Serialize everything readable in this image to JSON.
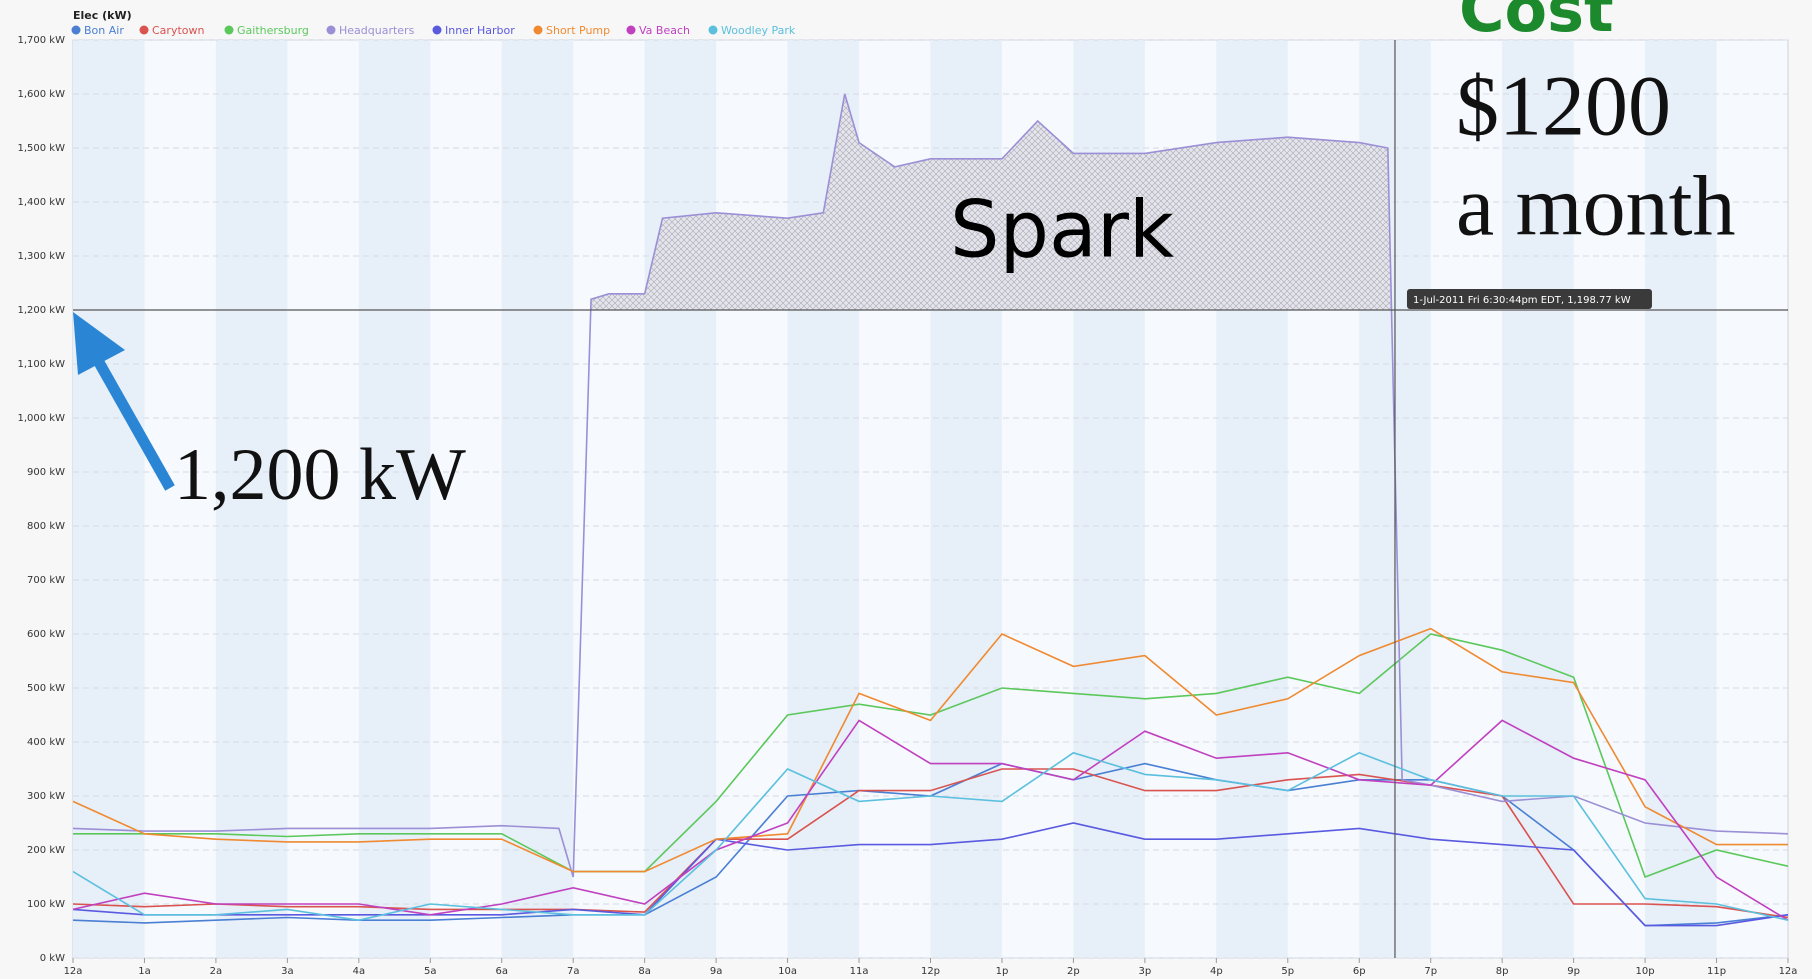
{
  "chart_data": {
    "type": "line",
    "title": "Elec (kW)",
    "x": [
      0,
      1,
      2,
      3,
      4,
      5,
      6,
      7,
      8,
      9,
      10,
      11,
      12,
      13,
      14,
      15,
      16,
      17,
      18,
      19,
      20,
      21,
      22,
      23,
      24
    ],
    "xlim": [
      0,
      24
    ],
    "xticks": [
      {
        "value": 0,
        "label": "12a"
      },
      {
        "value": 1,
        "label": "1a"
      },
      {
        "value": 2,
        "label": "2a"
      },
      {
        "value": 3,
        "label": "3a"
      },
      {
        "value": 4,
        "label": "4a"
      },
      {
        "value": 5,
        "label": "5a"
      },
      {
        "value": 6,
        "label": "6a"
      },
      {
        "value": 7,
        "label": "7a"
      },
      {
        "value": 8,
        "label": "8a"
      },
      {
        "value": 9,
        "label": "9a"
      },
      {
        "value": 10,
        "label": "10a"
      },
      {
        "value": 11,
        "label": "11a"
      },
      {
        "value": 12,
        "label": "12p"
      },
      {
        "value": 13,
        "label": "1p"
      },
      {
        "value": 14,
        "label": "2p"
      },
      {
        "value": 15,
        "label": "3p"
      },
      {
        "value": 16,
        "label": "4p"
      },
      {
        "value": 17,
        "label": "5p"
      },
      {
        "value": 18,
        "label": "6p"
      },
      {
        "value": 19,
        "label": "7p"
      },
      {
        "value": 20,
        "label": "8p"
      },
      {
        "value": 21,
        "label": "9p"
      },
      {
        "value": 22,
        "label": "10p"
      },
      {
        "value": 23,
        "label": "11p"
      },
      {
        "value": 24,
        "label": "12a"
      }
    ],
    "ylim": [
      0,
      1700
    ],
    "yticks": [
      {
        "value": 0,
        "label": "0 kW"
      },
      {
        "value": 100,
        "label": "100 kW"
      },
      {
        "value": 200,
        "label": "200 kW"
      },
      {
        "value": 300,
        "label": "300 kW"
      },
      {
        "value": 400,
        "label": "400 kW"
      },
      {
        "value": 500,
        "label": "500 kW"
      },
      {
        "value": 600,
        "label": "600 kW"
      },
      {
        "value": 700,
        "label": "700 kW"
      },
      {
        "value": 800,
        "label": "800 kW"
      },
      {
        "value": 900,
        "label": "900 kW"
      },
      {
        "value": 1000,
        "label": "1,000 kW"
      },
      {
        "value": 1100,
        "label": "1,100 kW"
      },
      {
        "value": 1200,
        "label": "1,200 kW"
      },
      {
        "value": 1300,
        "label": "1,300 kW"
      },
      {
        "value": 1400,
        "label": "1,400 kW"
      },
      {
        "value": 1500,
        "label": "1,500 kW"
      },
      {
        "value": 1600,
        "label": "1,600 kW"
      },
      {
        "value": 1700,
        "label": "1,700 kW"
      }
    ],
    "grid": true,
    "legend": "top-left",
    "series": [
      {
        "name": "Bon Air",
        "color": "#4a7fd4",
        "values": [
          70,
          65,
          70,
          75,
          70,
          70,
          75,
          80,
          80,
          150,
          300,
          310,
          300,
          360,
          330,
          360,
          330,
          310,
          330,
          330,
          300,
          200,
          60,
          65,
          80
        ]
      },
      {
        "name": "Carytown",
        "color": "#d9534f",
        "values": [
          100,
          95,
          100,
          95,
          95,
          90,
          90,
          90,
          85,
          220,
          220,
          310,
          310,
          350,
          350,
          310,
          310,
          330,
          340,
          320,
          300,
          100,
          100,
          95,
          75
        ]
      },
      {
        "name": "Gaithersburg",
        "color": "#5cc85c",
        "values": [
          230,
          230,
          230,
          225,
          230,
          230,
          230,
          160,
          160,
          290,
          450,
          470,
          450,
          500,
          490,
          480,
          490,
          520,
          490,
          600,
          570,
          520,
          150,
          200,
          170
        ]
      },
      {
        "name": "Headquarters",
        "color": "#9b8fd6",
        "x": [
          0,
          1,
          2,
          3,
          4,
          5,
          6,
          6.8,
          7,
          7.25,
          7.5,
          8,
          8.25,
          9,
          10,
          10.5,
          10.8,
          11,
          11.5,
          12,
          13,
          13.5,
          14,
          15,
          16,
          17,
          18,
          18.4,
          18.6,
          19,
          20,
          21,
          22,
          23,
          24
        ],
        "values": [
          240,
          235,
          235,
          240,
          240,
          240,
          245,
          240,
          150,
          1220,
          1230,
          1230,
          1370,
          1380,
          1370,
          1380,
          1600,
          1510,
          1465,
          1480,
          1480,
          1550,
          1490,
          1490,
          1510,
          1520,
          1510,
          1500,
          330,
          320,
          290,
          300,
          250,
          235,
          230
        ]
      },
      {
        "name": "Inner Harbor",
        "color": "#5a5ae0",
        "values": [
          90,
          80,
          80,
          80,
          80,
          80,
          80,
          90,
          80,
          220,
          200,
          210,
          210,
          220,
          250,
          220,
          220,
          230,
          240,
          220,
          210,
          200,
          60,
          60,
          80
        ]
      },
      {
        "name": "Short Pump",
        "color": "#f08a30",
        "values": [
          290,
          230,
          220,
          215,
          215,
          220,
          220,
          160,
          160,
          220,
          230,
          490,
          440,
          600,
          540,
          560,
          450,
          480,
          560,
          610,
          530,
          510,
          280,
          210,
          210
        ]
      },
      {
        "name": "Va Beach",
        "color": "#c040c0",
        "values": [
          90,
          120,
          100,
          100,
          100,
          80,
          100,
          130,
          100,
          200,
          250,
          440,
          360,
          360,
          330,
          420,
          370,
          380,
          330,
          320,
          440,
          370,
          330,
          150,
          70
        ]
      },
      {
        "name": "Woodley Park",
        "color": "#5bc0de",
        "values": [
          160,
          80,
          80,
          90,
          70,
          100,
          90,
          80,
          80,
          200,
          350,
          290,
          300,
          290,
          380,
          340,
          330,
          310,
          380,
          330,
          300,
          300,
          110,
          100,
          70
        ]
      }
    ],
    "crosshair": {
      "x": 18.5,
      "y": 1200,
      "label": "1-Jul-2011 Fri 6:30:44pm EDT, 1,198.77 kW"
    },
    "annotations": {
      "cost": "Cost",
      "amount": "$1200",
      "period": "a month",
      "spark": "Spark",
      "peak": "1,200 kW"
    }
  }
}
